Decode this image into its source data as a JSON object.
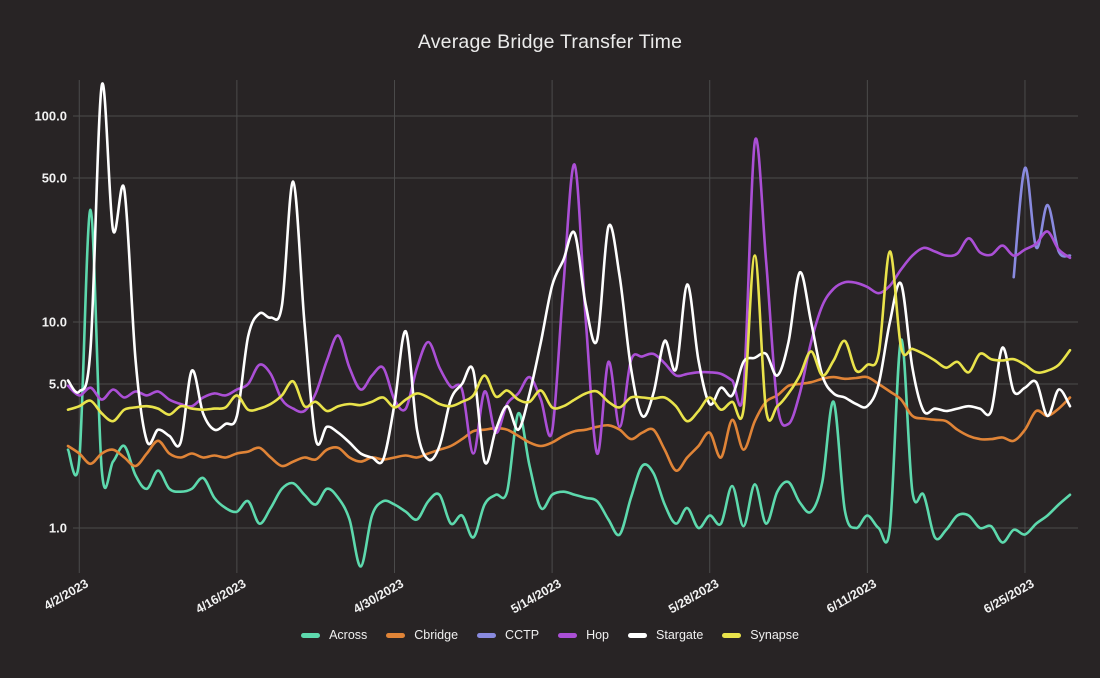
{
  "chart_data": {
    "type": "line",
    "title": "Average Bridge Transfer Time",
    "xlabel": "",
    "ylabel": "",
    "y_scale": "log",
    "grid": true,
    "legend_position": "bottom",
    "y_tick_labels": [
      "100.0",
      "50.0",
      "10.0",
      "5.0",
      "1.0"
    ],
    "y_tick_values": [
      100,
      50,
      10,
      5,
      1
    ],
    "x_tick_labels": [
      "4/2/2023",
      "4/16/2023",
      "4/30/2023",
      "5/14/2023",
      "5/28/2023",
      "6/11/2023",
      "6/25/2023"
    ],
    "x_tick_day_indices": [
      1,
      15,
      29,
      43,
      57,
      71,
      85
    ],
    "num_days": 90,
    "ylim": [
      0.6,
      145
    ],
    "series": [
      {
        "name": "Across",
        "color": "#5dd9ad",
        "values": [
          2.4,
          2.15,
          35,
          1.9,
          2.1,
          2.5,
          1.8,
          1.55,
          1.9,
          1.55,
          1.5,
          1.55,
          1.75,
          1.4,
          1.25,
          1.2,
          1.35,
          1.05,
          1.25,
          1.55,
          1.65,
          1.45,
          1.3,
          1.55,
          1.4,
          1.1,
          0.65,
          1.15,
          1.35,
          1.3,
          1.2,
          1.1,
          1.35,
          1.45,
          1.05,
          1.15,
          0.9,
          1.3,
          1.45,
          1.5,
          3.6,
          2.0,
          1.25,
          1.45,
          1.5,
          1.45,
          1.4,
          1.35,
          1.1,
          0.93,
          1.4,
          2.0,
          1.85,
          1.3,
          1.05,
          1.25,
          1.0,
          1.15,
          1.05,
          1.6,
          1.02,
          1.63,
          1.05,
          1.5,
          1.67,
          1.33,
          1.2,
          1.67,
          4.1,
          1.22,
          1.0,
          1.15,
          1.0,
          1.0,
          8.2,
          1.5,
          1.45,
          0.9,
          0.98,
          1.15,
          1.15,
          1.0,
          1.02,
          0.85,
          0.98,
          0.93,
          1.05,
          1.15,
          1.3,
          1.45
        ]
      },
      {
        "name": "Cbridge",
        "color": "#e08437",
        "values": [
          2.5,
          2.3,
          2.05,
          2.3,
          2.4,
          2.2,
          2.0,
          2.3,
          2.65,
          2.3,
          2.2,
          2.3,
          2.2,
          2.25,
          2.2,
          2.3,
          2.35,
          2.45,
          2.2,
          2.0,
          2.1,
          2.2,
          2.15,
          2.4,
          2.45,
          2.2,
          2.1,
          2.2,
          2.15,
          2.2,
          2.25,
          2.2,
          2.3,
          2.4,
          2.5,
          2.7,
          2.95,
          3.0,
          3.05,
          3.0,
          2.8,
          2.6,
          2.5,
          2.6,
          2.8,
          2.95,
          3.0,
          3.1,
          3.15,
          3.0,
          2.7,
          2.9,
          3.0,
          2.4,
          1.9,
          2.2,
          2.5,
          2.9,
          2.2,
          3.35,
          2.4,
          3.3,
          4.1,
          4.4,
          4.9,
          5.0,
          5.1,
          5.3,
          5.4,
          5.3,
          5.35,
          5.4,
          5.0,
          4.6,
          4.2,
          3.5,
          3.4,
          3.35,
          3.3,
          3.0,
          2.8,
          2.7,
          2.7,
          2.75,
          2.65,
          3.0,
          3.7,
          3.5,
          3.8,
          4.3
        ]
      },
      {
        "name": "CCTP",
        "color": "#898adf",
        "values": [
          null,
          null,
          null,
          null,
          null,
          null,
          null,
          null,
          null,
          null,
          null,
          null,
          null,
          null,
          null,
          null,
          null,
          null,
          null,
          null,
          null,
          null,
          null,
          null,
          null,
          null,
          null,
          null,
          null,
          null,
          null,
          null,
          null,
          null,
          null,
          null,
          null,
          null,
          null,
          null,
          null,
          null,
          null,
          null,
          null,
          null,
          null,
          null,
          null,
          null,
          null,
          null,
          null,
          null,
          null,
          null,
          null,
          null,
          null,
          null,
          null,
          null,
          null,
          null,
          null,
          null,
          null,
          null,
          null,
          null,
          null,
          null,
          null,
          null,
          null,
          null,
          null,
          null,
          null,
          null,
          null,
          null,
          null,
          null,
          16.5,
          56,
          23,
          37,
          22,
          21
        ]
      },
      {
        "name": "Hop",
        "color": "#ab4fd6",
        "values": [
          4.9,
          4.4,
          4.8,
          4.2,
          4.7,
          4.3,
          4.6,
          4.4,
          4.6,
          4.2,
          4.0,
          3.9,
          4.3,
          4.5,
          4.4,
          4.7,
          5.0,
          6.2,
          5.6,
          4.2,
          3.8,
          3.7,
          4.5,
          6.5,
          8.6,
          6.0,
          4.7,
          5.5,
          6.0,
          4.2,
          3.8,
          6.0,
          8.0,
          6.0,
          4.85,
          4.7,
          2.3,
          4.6,
          2.9,
          4.0,
          4.5,
          5.4,
          4.2,
          2.95,
          15,
          58,
          10,
          2.3,
          6.4,
          3.1,
          6.5,
          6.8,
          7.0,
          6.3,
          5.5,
          5.6,
          5.7,
          5.7,
          5.6,
          5.2,
          4.7,
          75,
          20,
          4.0,
          3.2,
          4.5,
          8.0,
          12,
          14.5,
          15.6,
          15.5,
          14.8,
          13.8,
          15.0,
          18.0,
          21.0,
          22.9,
          22.0,
          21.0,
          21.5,
          25.5,
          21.8,
          21.2,
          23.5,
          21.0,
          22.5,
          24.0,
          27.5,
          22.5,
          20.5
        ]
      },
      {
        "name": "Stargate",
        "color": "#ffffff",
        "values": [
          5.2,
          4.6,
          7.4,
          141,
          28,
          44,
          6.5,
          2.65,
          3.0,
          2.8,
          2.6,
          5.8,
          3.6,
          3.0,
          3.2,
          3.5,
          8.5,
          11.0,
          10.5,
          12.0,
          48,
          10,
          2.7,
          3.1,
          2.9,
          2.6,
          2.3,
          2.2,
          2.15,
          4.0,
          9.0,
          3.0,
          2.15,
          2.5,
          4.2,
          5.0,
          5.8,
          2.1,
          3.0,
          3.9,
          3.0,
          4.5,
          8.0,
          15,
          20,
          27,
          12,
          8.2,
          29,
          16.6,
          6.0,
          3.5,
          4.5,
          8.1,
          5.9,
          15.2,
          6.5,
          4.0,
          4.8,
          4.4,
          6.4,
          6.7,
          7.0,
          5.5,
          8.0,
          17.4,
          10,
          5.5,
          4.5,
          4.3,
          4.0,
          3.9,
          5.0,
          10.0,
          15.3,
          6.0,
          3.7,
          3.8,
          3.7,
          3.8,
          3.9,
          3.8,
          3.7,
          7.5,
          4.6,
          4.8,
          5.1,
          3.5,
          4.7,
          3.9
        ]
      },
      {
        "name": "Synapse",
        "color": "#e9e34b",
        "values": [
          3.75,
          3.9,
          4.15,
          3.6,
          3.3,
          3.75,
          3.85,
          3.9,
          3.8,
          3.55,
          3.9,
          3.8,
          3.75,
          3.8,
          3.85,
          4.4,
          3.75,
          3.8,
          4.0,
          4.4,
          5.15,
          3.9,
          4.1,
          3.7,
          3.9,
          4.0,
          3.95,
          4.1,
          4.3,
          3.85,
          4.2,
          4.5,
          4.3,
          4.0,
          3.9,
          4.1,
          4.4,
          5.5,
          4.35,
          4.65,
          4.2,
          4.1,
          4.65,
          3.85,
          3.9,
          4.2,
          4.5,
          4.6,
          4.1,
          3.85,
          4.3,
          4.3,
          4.25,
          4.3,
          3.9,
          3.3,
          3.7,
          4.3,
          3.75,
          4.1,
          3.75,
          21,
          3.75,
          3.9,
          4.5,
          5.5,
          7.2,
          5.5,
          6.5,
          8.1,
          5.8,
          6.2,
          7.0,
          22,
          7.5,
          7.4,
          7.0,
          6.5,
          6.0,
          6.4,
          5.7,
          7.0,
          6.6,
          6.5,
          6.6,
          6.2,
          5.7,
          5.8,
          6.2,
          7.3
        ]
      }
    ],
    "colors": {
      "background": "#282425",
      "gridline": "#4b4b4b",
      "axis_text": "#f2f2f2",
      "title_text": "#ebebeb"
    }
  }
}
